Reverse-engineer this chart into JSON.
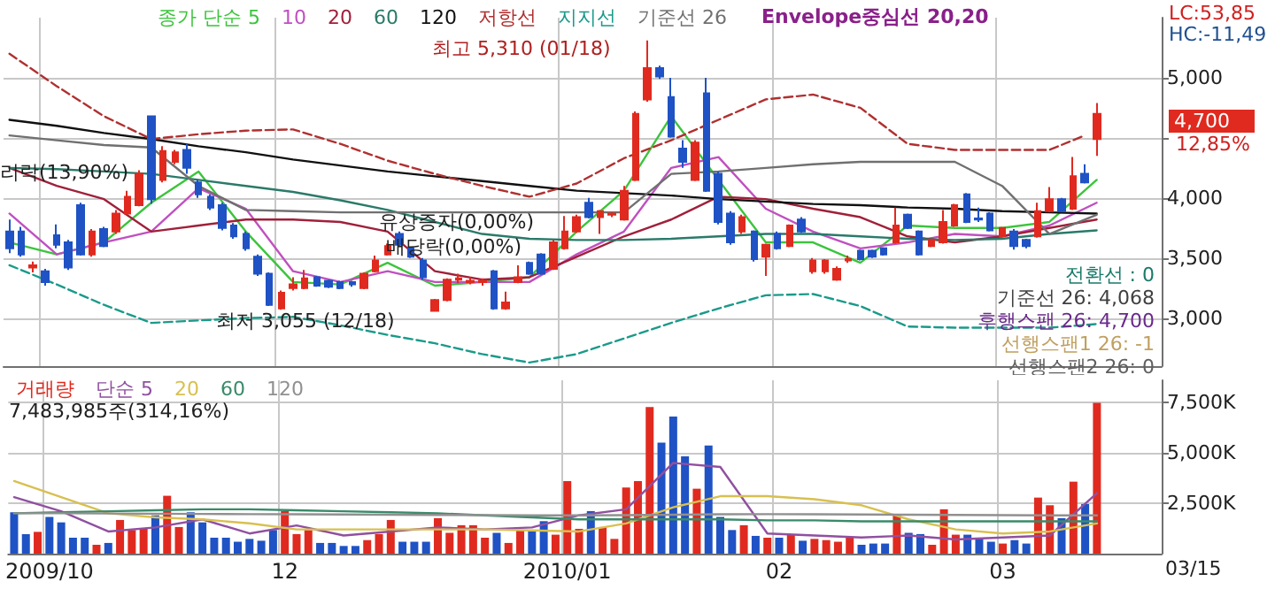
{
  "chart_data": [
    {
      "type": "candlestick",
      "legend": "top left",
      "grid": true,
      "marker": "none",
      "tick_labels": "y",
      "categories": [
        null,
        null,
        null,
        "2009/10",
        null,
        null,
        null,
        null,
        null,
        null,
        null,
        null,
        null,
        null,
        null,
        null,
        null,
        null,
        null,
        null,
        null,
        null,
        null,
        "12",
        null,
        null,
        null,
        null,
        null,
        null,
        null,
        null,
        null,
        null,
        null,
        null,
        null,
        null,
        null,
        null,
        null,
        null,
        null,
        null,
        null,
        null,
        null,
        "2010/01",
        null,
        null,
        null,
        null,
        null,
        null,
        null,
        null,
        null,
        null,
        null,
        null,
        null,
        null,
        null,
        null,
        null,
        "02",
        null,
        null,
        null,
        null,
        null,
        null,
        null,
        null,
        null,
        null,
        null,
        null,
        null,
        null,
        null,
        null,
        null,
        null,
        "03",
        null,
        null,
        null,
        null,
        null,
        null,
        null,
        null,
        null,
        null,
        null,
        null,
        null
      ],
      "ylim": [
        2600,
        5500
      ],
      "yticks": [
        {
          "value": 3000,
          "label": "3,000"
        },
        {
          "value": 3500,
          "label": "3,500"
        },
        {
          "value": 4000,
          "label": "4,000"
        },
        {
          "value": 4500,
          "label": null
        },
        {
          "value": 5000,
          "label": "5,000"
        }
      ],
      "ohlc": [
        [
          3720,
          3820,
          3540,
          3580
        ],
        [
          3720,
          3760,
          3510,
          3530
        ],
        [
          3420,
          3470,
          3380,
          3440
        ],
        [
          3390,
          3410,
          3270,
          3300
        ],
        [
          3690,
          3780,
          3580,
          3610
        ],
        [
          3630,
          3650,
          3400,
          3420
        ],
        [
          3940,
          3960,
          3520,
          3530
        ],
        [
          3530,
          3740,
          3510,
          3720
        ],
        [
          3740,
          3760,
          3590,
          3600
        ],
        [
          3720,
          3900,
          3700,
          3870
        ],
        [
          3870,
          4060,
          3860,
          4010
        ],
        [
          3940,
          4230,
          3930,
          4200
        ],
        [
          4680,
          4680,
          3950,
          3990
        ],
        [
          4150,
          4430,
          4130,
          4390
        ],
        [
          4300,
          4400,
          4280,
          4380
        ],
        [
          4400,
          4450,
          4200,
          4250
        ],
        [
          4130,
          4150,
          4000,
          4030
        ],
        [
          4010,
          4030,
          3900,
          3920
        ],
        [
          3940,
          3960,
          3730,
          3750
        ],
        [
          3770,
          3790,
          3660,
          3680
        ],
        [
          3700,
          3720,
          3560,
          3580
        ],
        [
          3510,
          3530,
          3350,
          3370
        ],
        [
          3370,
          3380,
          3100,
          3110
        ],
        [
          3080,
          3230,
          3070,
          3210
        ],
        [
          3250,
          3340,
          3230,
          3280
        ],
        [
          3250,
          3400,
          3240,
          3330
        ],
        [
          3340,
          3350,
          3260,
          3270
        ],
        [
          3310,
          3320,
          3250,
          3260
        ],
        [
          3300,
          3310,
          3240,
          3250
        ],
        [
          3300,
          3310,
          3260,
          3280
        ],
        [
          3250,
          3380,
          3240,
          3370
        ],
        [
          3390,
          3520,
          3380,
          3480
        ],
        [
          3530,
          3620,
          3520,
          3600
        ],
        [
          3700,
          3720,
          3600,
          3610
        ],
        [
          3580,
          3590,
          3500,
          3510
        ],
        [
          3480,
          3500,
          3320,
          3340
        ],
        [
          3060,
          3160,
          3055,
          3150
        ],
        [
          3150,
          3330,
          3140,
          3320
        ],
        [
          3320,
          3370,
          3290,
          3330
        ],
        [
          3300,
          3340,
          3280,
          3310
        ],
        [
          3300,
          3330,
          3270,
          3310
        ],
        [
          3390,
          3400,
          3070,
          3080
        ],
        [
          3080,
          3220,
          3070,
          3130
        ],
        [
          3300,
          3440,
          3290,
          3340
        ],
        [
          3460,
          3470,
          3360,
          3370
        ],
        [
          3530,
          3540,
          3360,
          3370
        ],
        [
          3410,
          3650,
          3400,
          3630
        ],
        [
          3580,
          3850,
          3570,
          3720
        ],
        [
          3720,
          3860,
          3710,
          3840
        ],
        [
          3960,
          4000,
          3830,
          3840
        ],
        [
          3840,
          3900,
          3700,
          3890
        ],
        [
          3860,
          3880,
          3840,
          3870
        ],
        [
          3820,
          4100,
          3810,
          4060
        ],
        [
          4150,
          4720,
          4140,
          4700
        ],
        [
          4820,
          5310,
          4800,
          5080
        ],
        [
          5080,
          5100,
          4990,
          5010
        ],
        [
          4840,
          5000,
          4500,
          4510
        ],
        [
          4410,
          4480,
          4250,
          4300
        ],
        [
          4150,
          4480,
          4140,
          4460
        ],
        [
          4870,
          5000,
          4050,
          4060
        ],
        [
          4200,
          4220,
          3780,
          3800
        ],
        [
          3870,
          3890,
          3610,
          3630
        ],
        [
          3720,
          3860,
          3700,
          3840
        ],
        [
          3720,
          3730,
          3470,
          3490
        ],
        [
          3510,
          3620,
          3350,
          3610
        ],
        [
          3700,
          3720,
          3570,
          3580
        ],
        [
          3600,
          3780,
          3590,
          3770
        ],
        [
          3820,
          3840,
          3710,
          3720
        ],
        [
          3390,
          3500,
          3370,
          3480
        ],
        [
          3390,
          3490,
          3370,
          3480
        ],
        [
          3320,
          3430,
          3310,
          3410
        ],
        [
          3480,
          3520,
          3460,
          3490
        ],
        [
          3560,
          3570,
          3480,
          3490
        ],
        [
          3560,
          3570,
          3500,
          3510
        ],
        [
          3580,
          3590,
          3520,
          3530
        ],
        [
          3630,
          3920,
          3620,
          3770
        ],
        [
          3860,
          3870,
          3740,
          3750
        ],
        [
          3720,
          3730,
          3520,
          3530
        ],
        [
          3600,
          3660,
          3590,
          3650
        ],
        [
          3630,
          3900,
          3620,
          3800
        ],
        [
          3770,
          3950,
          3760,
          3940
        ],
        [
          4030,
          4040,
          3790,
          3800
        ],
        [
          3830,
          3920,
          3800,
          3820
        ],
        [
          3870,
          3880,
          3720,
          3730
        ],
        [
          3680,
          3760,
          3670,
          3750
        ],
        [
          3720,
          3740,
          3570,
          3600
        ],
        [
          3650,
          3660,
          3580,
          3600
        ],
        [
          3680,
          3960,
          3670,
          3890
        ],
        [
          3890,
          4090,
          3880,
          3990
        ],
        [
          3990,
          4000,
          3880,
          3890
        ],
        [
          3910,
          4340,
          3900,
          4180
        ],
        [
          4200,
          4280,
          4120,
          4130
        ],
        [
          4490,
          4790,
          4350,
          4700
        ],
        null,
        null,
        null,
        null,
        null
      ],
      "series": [
        {
          "name": "종가 단순 5",
          "type": "line",
          "color": "#3cc43c",
          "values": [
            3630,
            null,
            null,
            null,
            3530,
            null,
            null,
            null,
            3630,
            null,
            null,
            null,
            3960,
            null,
            null,
            null,
            4220,
            null,
            null,
            null,
            3720,
            null,
            null,
            null,
            3300,
            null,
            null,
            null,
            3280,
            null,
            null,
            null,
            3460,
            null,
            null,
            null,
            3270,
            null,
            null,
            null,
            3300,
            null,
            null,
            null,
            3340,
            null,
            null,
            null,
            3720,
            null,
            null,
            null,
            4060,
            null,
            null,
            null,
            4680,
            null,
            null,
            null,
            4150,
            null,
            null,
            null,
            3630,
            null,
            null,
            null,
            3630,
            null,
            null,
            null,
            3460,
            null,
            null,
            null,
            3770,
            null,
            null,
            null,
            3750,
            null,
            null,
            null,
            3750,
            null,
            null,
            null,
            3800,
            null,
            null,
            null,
            4150,
            null,
            null,
            null,
            null,
            null
          ]
        },
        {
          "name": "10",
          "type": "line",
          "color": "#c050c0",
          "values": [
            3870,
            null,
            null,
            null,
            3530,
            null,
            null,
            null,
            3630,
            null,
            null,
            null,
            3720,
            null,
            null,
            null,
            4080,
            null,
            null,
            null,
            3910,
            null,
            null,
            null,
            3390,
            null,
            null,
            null,
            3300,
            null,
            null,
            null,
            3390,
            null,
            null,
            null,
            3300,
            null,
            null,
            null,
            3300,
            null,
            null,
            null,
            3300,
            null,
            null,
            null,
            3530,
            null,
            null,
            null,
            3720,
            null,
            null,
            null,
            4250,
            null,
            null,
            null,
            4340,
            null,
            null,
            null,
            3910,
            null,
            null,
            null,
            3720,
            null,
            null,
            null,
            3580,
            null,
            null,
            null,
            3630,
            null,
            null,
            null,
            3700,
            null,
            null,
            null,
            3680,
            null,
            null,
            null,
            3770,
            null,
            null,
            null,
            3960,
            null,
            null,
            null,
            null,
            null
          ]
        },
        {
          "name": "20",
          "type": "line",
          "color": "#a0203a",
          "values": [
            4250,
            null,
            null,
            null,
            4100,
            null,
            null,
            null,
            3990,
            null,
            null,
            null,
            3720,
            null,
            null,
            null,
            3770,
            null,
            null,
            null,
            3820,
            null,
            null,
            null,
            3820,
            null,
            null,
            null,
            3800,
            null,
            null,
            null,
            3720,
            null,
            null,
            null,
            3390,
            null,
            null,
            null,
            3320,
            null,
            null,
            null,
            3340,
            null,
            null,
            null,
            3510,
            null,
            null,
            null,
            3680,
            null,
            null,
            null,
            3820,
            null,
            null,
            null,
            4010,
            null,
            null,
            null,
            3990,
            null,
            null,
            null,
            3910,
            null,
            null,
            null,
            3840,
            null,
            null,
            null,
            3680,
            null,
            null,
            null,
            3630,
            null,
            null,
            null,
            3680,
            null,
            null,
            null,
            3750,
            null,
            null,
            null,
            3820,
            null,
            null,
            null,
            null,
            null
          ]
        },
        {
          "name": "60",
          "type": "line",
          "color": "#2a7a6a",
          "values": [
            4250,
            null,
            null,
            null,
            4240,
            null,
            null,
            null,
            4220,
            null,
            null,
            null,
            4200,
            null,
            null,
            null,
            4150,
            null,
            null,
            null,
            4100,
            null,
            null,
            null,
            4050,
            null,
            null,
            null,
            3980,
            null,
            null,
            null,
            3900,
            null,
            null,
            null,
            3800,
            null,
            null,
            null,
            3700,
            null,
            null,
            null,
            3660,
            null,
            null,
            null,
            3650,
            null,
            null,
            null,
            3650,
            null,
            null,
            null,
            3660,
            null,
            null,
            null,
            3680,
            null,
            null,
            null,
            3700,
            null,
            null,
            null,
            3700,
            null,
            null,
            null,
            3680,
            null,
            null,
            null,
            3660,
            null,
            null,
            null,
            3650,
            null,
            null,
            null,
            3660,
            null,
            null,
            null,
            3700,
            null,
            null,
            null,
            3730,
            null,
            null,
            null,
            null,
            null
          ]
        },
        {
          "name": "120",
          "type": "line",
          "color": "#101010",
          "values": [
            4650,
            null,
            null,
            null,
            4600,
            null,
            null,
            null,
            4540,
            null,
            null,
            null,
            4490,
            null,
            null,
            null,
            4430,
            null,
            null,
            null,
            4380,
            null,
            null,
            null,
            4320,
            null,
            null,
            null,
            4270,
            null,
            null,
            null,
            4220,
            null,
            null,
            null,
            4180,
            null,
            null,
            null,
            4140,
            null,
            null,
            null,
            4100,
            null,
            null,
            null,
            4060,
            null,
            null,
            null,
            4040,
            null,
            null,
            null,
            4020,
            null,
            null,
            null,
            3990,
            null,
            null,
            null,
            3970,
            null,
            null,
            null,
            3950,
            null,
            null,
            null,
            3940,
            null,
            null,
            null,
            3920,
            null,
            null,
            null,
            3910,
            null,
            null,
            null,
            3890,
            null,
            null,
            null,
            3880,
            null,
            null,
            null,
            3870,
            null,
            null,
            null,
            null,
            null
          ]
        },
        {
          "name": "저항선",
          "type": "line",
          "color": "#b03030",
          "line_style": "dashed",
          "values": [
            5200,
            null,
            null,
            null,
            4930,
            null,
            null,
            null,
            4680,
            null,
            null,
            null,
            4490,
            null,
            null,
            null,
            4530,
            null,
            null,
            null,
            4560,
            null,
            null,
            null,
            4570,
            null,
            null,
            null,
            4450,
            null,
            null,
            null,
            4310,
            null,
            null,
            null,
            4200,
            null,
            null,
            null,
            4100,
            null,
            null,
            null,
            4010,
            null,
            null,
            null,
            4120,
            null,
            null,
            null,
            4330,
            null,
            null,
            null,
            4480,
            null,
            null,
            null,
            4650,
            null,
            null,
            null,
            4820,
            null,
            null,
            null,
            4860,
            null,
            null,
            null,
            4750,
            null,
            null,
            null,
            4450,
            null,
            null,
            null,
            4400,
            null,
            null,
            null,
            4400,
            null,
            null,
            null,
            4400,
            null,
            null,
            4520,
            null,
            null,
            null,
            null,
            null,
            null
          ]
        },
        {
          "name": "지지선",
          "type": "line",
          "color": "#1a9a8a",
          "line_style": "dashed",
          "values": [
            3440,
            null,
            null,
            null,
            3280,
            null,
            null,
            null,
            3110,
            null,
            null,
            null,
            2960,
            null,
            null,
            null,
            2980,
            null,
            null,
            null,
            3000,
            null,
            null,
            null,
            3010,
            null,
            null,
            null,
            2940,
            null,
            null,
            null,
            2860,
            null,
            null,
            null,
            2790,
            null,
            null,
            null,
            2700,
            null,
            null,
            null,
            2630,
            null,
            null,
            null,
            2700,
            null,
            null,
            null,
            2830,
            null,
            null,
            null,
            2960,
            null,
            null,
            null,
            3080,
            null,
            null,
            null,
            3190,
            null,
            null,
            null,
            3200,
            null,
            null,
            null,
            3100,
            null,
            null,
            null,
            2930,
            null,
            null,
            null,
            2920,
            null,
            null,
            null,
            2920,
            null,
            null,
            null,
            2920,
            null,
            null,
            null,
            2950,
            null,
            null,
            null,
            null,
            null
          ]
        },
        {
          "name": "기준선 26",
          "type": "line",
          "color": "#707070",
          "values": [
            4520,
            null,
            null,
            null,
            4480,
            null,
            null,
            null,
            4440,
            null,
            null,
            null,
            4420,
            null,
            null,
            null,
            4100,
            null,
            null,
            null,
            3900,
            null,
            null,
            null,
            3890,
            null,
            null,
            null,
            3880,
            null,
            null,
            null,
            3880,
            null,
            null,
            null,
            3880,
            null,
            null,
            null,
            3880,
            null,
            null,
            null,
            3880,
            null,
            null,
            null,
            3880,
            null,
            null,
            null,
            3880,
            null,
            null,
            null,
            4200,
            null,
            null,
            null,
            4220,
            null,
            null,
            null,
            4250,
            null,
            null,
            null,
            4280,
            null,
            null,
            null,
            4300,
            null,
            null,
            null,
            4300,
            null,
            null,
            null,
            4300,
            null,
            null,
            null,
            4100,
            null,
            null,
            null,
            3700,
            null,
            null,
            null,
            3860,
            null,
            null,
            null,
            null,
            null
          ]
        }
      ],
      "annotations": [
        "LC:53,85",
        "HC:-11,49",
        "4,700",
        "12,85%",
        "최고 5,310 (01/18)",
        "최저 3,055 (12/18)",
        "리락(13,90%)",
        "유상증자(0,00%)",
        "배당락(0,00%)",
        "Envelope중심선 20,20",
        "전환선 : 0",
        "기준선 26: 4,068",
        "후행스팬 26: 4,700",
        "선행스팬1 26: -1",
        "선행스팬2 26: 0"
      ]
    },
    {
      "type": "bar",
      "legend": "top left",
      "grid": true,
      "marker": "none",
      "categories": [
        null,
        null,
        null,
        "2009/10",
        null,
        null,
        null,
        null,
        null,
        null,
        null,
        null,
        null,
        null,
        null,
        null,
        null,
        null,
        null,
        null,
        null,
        null,
        null,
        "12",
        null,
        null,
        null,
        null,
        null,
        null,
        null,
        null,
        null,
        null,
        null,
        null,
        null,
        null,
        null,
        null,
        null,
        null,
        null,
        null,
        null,
        null,
        null,
        "2010/01",
        null,
        null,
        null,
        null,
        null,
        null,
        null,
        null,
        null,
        null,
        null,
        null,
        null,
        null,
        null,
        null,
        null,
        "02",
        null,
        null,
        null,
        null,
        null,
        null,
        null,
        null,
        null,
        null,
        null,
        null,
        null,
        null,
        null,
        null,
        null,
        null,
        "03",
        null,
        null,
        null,
        null,
        null,
        null,
        null,
        null,
        null,
        null,
        null,
        null,
        null
      ],
      "ylim": [
        0,
        8600
      ],
      "yticks": [
        {
          "value": 2500,
          "label": "2,500K"
        },
        {
          "value": 5000,
          "label": "5,000K"
        },
        {
          "value": 7500,
          "label": "7,500K"
        }
      ],
      "series": [
        {
          "name": "거래량",
          "type": "bar",
          "color": "#e02a1f",
          "values": [
            2050,
            970,
            1080,
            1820,
            1550,
            790,
            790,
            440,
            530,
            1670,
            1170,
            1230,
            1900,
            2870,
            1320,
            2050,
            1550,
            790,
            790,
            590,
            730,
            640,
            1170,
            2110,
            970,
            1170,
            530,
            530,
            380,
            380,
            670,
            970,
            1670,
            590,
            590,
            590,
            1760,
            1030,
            1410,
            1410,
            790,
            1030,
            530,
            1170,
            1110,
            1610,
            940,
            3600,
            1230,
            2110,
            1320,
            730,
            3280,
            3600,
            7270,
            5510,
            6800,
            4830,
            3220,
            5360,
            1820,
            1170,
            1410,
            880,
            790,
            790,
            940,
            640,
            730,
            670,
            590,
            790,
            440,
            500,
            500,
            1900,
            1030,
            970,
            440,
            2200,
            940,
            940,
            790,
            590,
            500,
            670,
            500,
            2780,
            2400,
            1760,
            3570,
            2460,
            7484,
            null,
            null,
            null,
            null,
            null
          ],
          "colors": [
            "#1f52c4",
            "#1f52c4",
            "#e02a1f",
            "#1f52c4",
            "#1f52c4",
            "#1f52c4",
            "#1f52c4",
            "#e02a1f",
            "#1f52c4",
            "#e02a1f",
            "#e02a1f",
            "#e02a1f",
            "#1f52c4",
            "#e02a1f",
            "#e02a1f",
            "#1f52c4",
            "#1f52c4",
            "#1f52c4",
            "#1f52c4",
            "#1f52c4",
            "#1f52c4",
            "#1f52c4",
            "#1f52c4",
            "#e02a1f",
            "#e02a1f",
            "#e02a1f",
            "#1f52c4",
            "#1f52c4",
            "#1f52c4",
            "#1f52c4",
            "#e02a1f",
            "#e02a1f",
            "#e02a1f",
            "#1f52c4",
            "#1f52c4",
            "#1f52c4",
            "#e02a1f",
            "#e02a1f",
            "#e02a1f",
            "#e02a1f",
            "#e02a1f",
            "#1f52c4",
            "#e02a1f",
            "#e02a1f",
            "#1f52c4",
            "#1f52c4",
            "#e02a1f",
            "#e02a1f",
            "#e02a1f",
            "#1f52c4",
            "#e02a1f",
            "#e02a1f",
            "#e02a1f",
            "#e02a1f",
            "#e02a1f",
            "#1f52c4",
            "#1f52c4",
            "#1f52c4",
            "#e02a1f",
            "#1f52c4",
            "#1f52c4",
            "#1f52c4",
            "#e02a1f",
            "#1f52c4",
            "#e02a1f",
            "#1f52c4",
            "#e02a1f",
            "#1f52c4",
            "#e02a1f",
            "#e02a1f",
            "#e02a1f",
            "#e02a1f",
            "#1f52c4",
            "#1f52c4",
            "#1f52c4",
            "#e02a1f",
            "#1f52c4",
            "#1f52c4",
            "#e02a1f",
            "#e02a1f",
            "#e02a1f",
            "#1f52c4",
            "#1f52c4",
            "#1f52c4",
            "#e02a1f",
            "#1f52c4",
            "#1f52c4",
            "#e02a1f",
            "#e02a1f",
            "#1f52c4",
            "#e02a1f",
            "#1f52c4",
            "#e02a1f",
            null,
            null,
            null,
            null,
            null
          ]
        },
        {
          "name": "단순 5",
          "type": "line",
          "color": "#9050a0",
          "values": [
            2800,
            null,
            null,
            null,
            2100,
            null,
            null,
            null,
            1100,
            null,
            null,
            null,
            1300,
            null,
            null,
            null,
            1700,
            null,
            null,
            null,
            1000,
            null,
            null,
            null,
            1400,
            null,
            null,
            null,
            900,
            null,
            null,
            null,
            1100,
            null,
            null,
            null,
            1300,
            null,
            null,
            null,
            1200,
            null,
            null,
            null,
            1300,
            null,
            null,
            null,
            1900,
            null,
            null,
            null,
            2200,
            null,
            null,
            null,
            4500,
            null,
            null,
            null,
            4300,
            null,
            null,
            null,
            1000,
            null,
            null,
            null,
            900,
            null,
            null,
            null,
            800,
            null,
            null,
            null,
            900,
            null,
            null,
            null,
            700,
            null,
            null,
            null,
            800,
            null,
            null,
            null,
            900,
            null,
            null,
            null,
            3000,
            null,
            null,
            null,
            null,
            null
          ]
        },
        {
          "name": "20",
          "type": "line",
          "color": "#d8c050",
          "values": [
            3600,
            null,
            null,
            null,
            2800,
            null,
            null,
            null,
            2000,
            null,
            null,
            null,
            1800,
            null,
            null,
            null,
            1700,
            null,
            null,
            null,
            1500,
            null,
            null,
            null,
            1200,
            null,
            null,
            null,
            1200,
            null,
            null,
            null,
            1200,
            null,
            null,
            null,
            1200,
            null,
            null,
            null,
            1200,
            null,
            null,
            null,
            1150,
            null,
            null,
            null,
            1100,
            null,
            null,
            null,
            1500,
            null,
            null,
            null,
            2300,
            null,
            null,
            null,
            2850,
            null,
            null,
            null,
            2850,
            null,
            null,
            null,
            2700,
            null,
            null,
            null,
            2400,
            null,
            null,
            null,
            1700,
            null,
            null,
            null,
            1200,
            null,
            null,
            null,
            1000,
            null,
            null,
            null,
            1100,
            null,
            null,
            null,
            1500,
            null,
            null,
            null,
            null,
            null
          ]
        },
        {
          "name": "60",
          "type": "line",
          "color": "#3a8a6a",
          "values": [
            2000,
            null,
            null,
            null,
            2050,
            null,
            null,
            null,
            2100,
            null,
            null,
            null,
            2150,
            null,
            null,
            null,
            2200,
            null,
            null,
            null,
            2200,
            null,
            null,
            null,
            2150,
            null,
            null,
            null,
            2100,
            null,
            null,
            null,
            2050,
            null,
            null,
            null,
            2000,
            null,
            null,
            null,
            1900,
            null,
            null,
            null,
            1800,
            null,
            null,
            null,
            1700,
            null,
            null,
            null,
            1700,
            null,
            null,
            null,
            1700,
            null,
            null,
            null,
            1700,
            null,
            null,
            null,
            1650,
            null,
            null,
            null,
            1650,
            null,
            null,
            null,
            1600,
            null,
            null,
            null,
            1600,
            null,
            null,
            null,
            1600,
            null,
            null,
            null,
            1600,
            null,
            null,
            null,
            1600,
            null,
            null,
            null,
            1600,
            null,
            null,
            null,
            null,
            null
          ]
        },
        {
          "name": "120",
          "type": "line",
          "color": "#909090",
          "values": [
            2000,
            null,
            null,
            null,
            2000,
            null,
            null,
            null,
            1990,
            null,
            null,
            null,
            1980,
            null,
            null,
            null,
            1970,
            null,
            null,
            null,
            1960,
            null,
            null,
            null,
            1950,
            null,
            null,
            null,
            1940,
            null,
            null,
            null,
            1930,
            null,
            null,
            null,
            1920,
            null,
            null,
            null,
            1910,
            null,
            null,
            null,
            1900,
            null,
            null,
            null,
            1900,
            null,
            null,
            null,
            1910,
            null,
            null,
            null,
            1930,
            null,
            null,
            null,
            1950,
            null,
            null,
            null,
            1960,
            null,
            null,
            null,
            1950,
            null,
            null,
            null,
            1940,
            null,
            null,
            null,
            1930,
            null,
            null,
            null,
            1920,
            null,
            null,
            null,
            1910,
            null,
            null,
            null,
            1900,
            null,
            null,
            null,
            1900,
            null,
            null,
            null,
            null,
            null
          ]
        }
      ],
      "annotations": [
        "7,483,985주(314,16%)",
        "03/15"
      ]
    }
  ]
}
